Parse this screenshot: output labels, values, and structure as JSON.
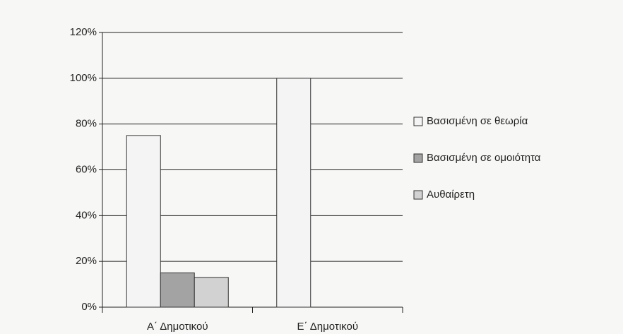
{
  "chart_data": {
    "type": "bar",
    "categories": [
      "Α΄ Δημοτικού",
      "Ε΄ Δημοτικού"
    ],
    "series": [
      {
        "name": "Βασισμένη σε θεωρία",
        "color": "#f4f4f4",
        "values": [
          75,
          100
        ]
      },
      {
        "name": "Βασισμένη σε ομοιότητα",
        "color": "#a3a3a3",
        "values": [
          15,
          0
        ]
      },
      {
        "name": "Αυθαίρετη",
        "color": "#d2d2d2",
        "values": [
          13,
          0
        ]
      }
    ],
    "ylim": [
      0,
      120
    ],
    "yticks": [
      {
        "value": 0,
        "label": "0%"
      },
      {
        "value": 20,
        "label": "20%"
      },
      {
        "value": 40,
        "label": "40%"
      },
      {
        "value": 60,
        "label": "60%"
      },
      {
        "value": 80,
        "label": "80%"
      },
      {
        "value": 100,
        "label": "100%"
      },
      {
        "value": 120,
        "label": "120%"
      }
    ],
    "grid": true,
    "legend": "right"
  }
}
